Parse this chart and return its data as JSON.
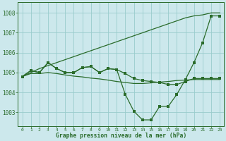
{
  "background_color": "#cce8ec",
  "grid_color": "#99cccc",
  "line_color": "#2a6b2a",
  "x_ticks": [
    0,
    1,
    2,
    3,
    4,
    5,
    6,
    7,
    8,
    9,
    10,
    11,
    12,
    13,
    14,
    15,
    16,
    17,
    18,
    19,
    20,
    21,
    22,
    23
  ],
  "y_ticks": [
    1003,
    1004,
    1005,
    1006,
    1007,
    1008
  ],
  "ylim": [
    1002.3,
    1008.55
  ],
  "xlim": [
    -0.5,
    23.5
  ],
  "xlabel": "Graphe pression niveau de la mer (hPa)",
  "series_wavy1": [
    1004.8,
    1005.1,
    1005.0,
    1005.5,
    1005.2,
    1005.0,
    1005.0,
    1005.25,
    1005.3,
    1005.0,
    1005.2,
    1005.15,
    1004.95,
    1004.7,
    1004.6,
    1004.55,
    1004.5,
    1004.4,
    1004.4,
    1004.55,
    1004.7,
    1004.7,
    1004.7,
    1004.7
  ],
  "series_wavy2": [
    1004.8,
    1005.1,
    1005.0,
    1005.5,
    1005.2,
    1005.0,
    1005.0,
    1005.25,
    1005.3,
    1005.0,
    1005.2,
    1005.15,
    1003.9,
    1003.05,
    1002.62,
    1002.62,
    1003.3,
    1003.3,
    1003.9,
    1004.65,
    1005.5,
    1006.5,
    1007.85,
    1007.85
  ],
  "series_diag": [
    1004.8,
    1005.0,
    1005.2,
    1005.35,
    1005.5,
    1005.65,
    1005.8,
    1005.95,
    1006.1,
    1006.25,
    1006.4,
    1006.55,
    1006.7,
    1006.85,
    1007.0,
    1007.15,
    1007.3,
    1007.45,
    1007.6,
    1007.75,
    1007.85,
    1007.9,
    1008.0,
    1008.0
  ],
  "series_flat": [
    1004.8,
    1004.95,
    1004.95,
    1005.0,
    1004.95,
    1004.88,
    1004.82,
    1004.78,
    1004.72,
    1004.68,
    1004.62,
    1004.55,
    1004.5,
    1004.45,
    1004.45,
    1004.48,
    1004.52,
    1004.55,
    1004.6,
    1004.62,
    1004.65,
    1004.65,
    1004.65,
    1004.65
  ]
}
